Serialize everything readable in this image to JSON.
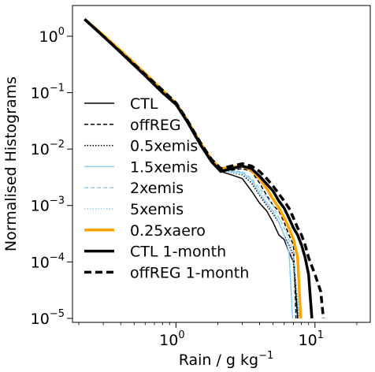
{
  "chart_data": {
    "type": "line",
    "xlabel_main": "Rain / g kg",
    "xlabel_sup": "−1",
    "ylabel": "Normalised Histograms",
    "xscale": "log",
    "yscale": "log",
    "xlim": [
      0.18,
      25
    ],
    "ylim": [
      8.5e-06,
      3.5
    ],
    "x_ticks": [
      {
        "value": 1,
        "base": "10",
        "exp": "0"
      },
      {
        "value": 10,
        "base": "10",
        "exp": "1"
      }
    ],
    "y_ticks": [
      {
        "value": 1,
        "base": "10",
        "exp": "0"
      },
      {
        "value": 0.1,
        "base": "10",
        "exp": "−1"
      },
      {
        "value": 0.01,
        "base": "10",
        "exp": "−2"
      },
      {
        "value": 0.001,
        "base": "10",
        "exp": "−3"
      },
      {
        "value": 0.0001,
        "base": "10",
        "exp": "−4"
      },
      {
        "value": 1e-05,
        "base": "10",
        "exp": "−5"
      }
    ],
    "legend_position": "center-left",
    "series": [
      {
        "name": "CTL",
        "color": "#000000",
        "width": 1.5,
        "dash": "",
        "x": [
          0.22,
          0.3,
          0.42,
          0.6,
          0.8,
          1.0,
          1.2,
          1.5,
          1.8,
          2.1,
          2.5,
          3.0,
          3.5,
          4.0,
          4.5,
          5.0,
          5.5,
          6.0,
          6.5,
          7.0,
          7.5
        ],
        "y": [
          2.0,
          1.0,
          0.45,
          0.2,
          0.1,
          0.06,
          0.03,
          0.012,
          0.006,
          0.004,
          0.0035,
          0.003,
          0.0018,
          0.0011,
          0.0008,
          0.0005,
          0.0003,
          0.00025,
          0.00015,
          0.0001,
          1e-05
        ]
      },
      {
        "name": "offREG",
        "color": "#000000",
        "width": 1.5,
        "dash": "5,3",
        "x": [
          0.22,
          0.3,
          0.42,
          0.6,
          0.8,
          1.0,
          1.2,
          1.5,
          1.8,
          2.1,
          2.5,
          3.0,
          3.5,
          4.0,
          4.5,
          5.0,
          5.5,
          6.0,
          6.5,
          7.0,
          7.3
        ],
        "y": [
          2.0,
          1.0,
          0.47,
          0.21,
          0.11,
          0.065,
          0.032,
          0.013,
          0.0065,
          0.0045,
          0.0042,
          0.0045,
          0.004,
          0.0025,
          0.0015,
          0.001,
          0.0008,
          0.0005,
          0.0003,
          0.0002,
          1e-05
        ]
      },
      {
        "name": "0.5xemis",
        "color": "#000000",
        "width": 1.5,
        "dash": "1.5,2",
        "x": [
          0.22,
          0.3,
          0.42,
          0.6,
          0.8,
          1.0,
          1.2,
          1.5,
          1.8,
          2.1,
          2.5,
          3.0,
          3.5,
          4.0,
          4.5,
          5.0,
          5.5,
          6.0,
          6.5,
          7.0,
          7.6
        ],
        "y": [
          2.0,
          1.0,
          0.46,
          0.2,
          0.105,
          0.062,
          0.031,
          0.012,
          0.006,
          0.0042,
          0.0038,
          0.0035,
          0.0025,
          0.0015,
          0.001,
          0.0007,
          0.0005,
          0.0003,
          0.0002,
          0.00013,
          1e-05
        ]
      },
      {
        "name": "1.5xemis",
        "color": "#8ecfee",
        "width": 1.5,
        "dash": "",
        "x": [
          0.22,
          0.3,
          0.42,
          0.6,
          0.8,
          1.0,
          1.2,
          1.5,
          1.8,
          2.1,
          2.5,
          3.0,
          3.5,
          4.0,
          4.5,
          5.0,
          5.5,
          6.0,
          6.5,
          6.9
        ],
        "y": [
          2.0,
          1.0,
          0.46,
          0.2,
          0.1,
          0.06,
          0.03,
          0.012,
          0.006,
          0.0045,
          0.004,
          0.0038,
          0.0028,
          0.0016,
          0.0011,
          0.0008,
          0.0005,
          0.0003,
          0.00015,
          1e-05
        ]
      },
      {
        "name": "2xemis",
        "color": "#8ecfee",
        "width": 1.5,
        "dash": "5,3",
        "x": [
          0.22,
          0.3,
          0.42,
          0.6,
          0.8,
          1.0,
          1.2,
          1.5,
          1.8,
          2.1,
          2.5,
          3.0,
          3.5,
          4.0,
          4.5,
          5.0,
          5.5,
          6.0,
          6.5,
          7.0,
          7.7
        ],
        "y": [
          2.0,
          1.0,
          0.46,
          0.2,
          0.105,
          0.062,
          0.031,
          0.012,
          0.006,
          0.0042,
          0.004,
          0.004,
          0.003,
          0.002,
          0.0014,
          0.001,
          0.0006,
          0.0004,
          0.00025,
          0.00015,
          1e-05
        ]
      },
      {
        "name": "5xemis",
        "color": "#8ecfee",
        "width": 1.5,
        "dash": "1.5,2",
        "x": [
          0.22,
          0.3,
          0.42,
          0.6,
          0.8,
          1.0,
          1.2,
          1.5,
          1.8,
          2.1,
          2.5,
          3.0,
          3.5,
          4.0,
          4.5,
          5.0,
          5.5,
          6.0,
          6.5,
          7.0,
          7.2
        ],
        "y": [
          2.0,
          1.0,
          0.46,
          0.2,
          0.1,
          0.06,
          0.03,
          0.012,
          0.006,
          0.0042,
          0.0038,
          0.0036,
          0.0028,
          0.0018,
          0.0012,
          0.0008,
          0.0005,
          0.0003,
          0.0002,
          0.0001,
          1e-05
        ]
      },
      {
        "name": "0.25xaero",
        "color": "#ffa500",
        "width": 3.5,
        "dash": "",
        "x": [
          0.22,
          0.3,
          0.42,
          0.6,
          0.8,
          1.0,
          1.2,
          1.5,
          1.8,
          2.1,
          2.5,
          3.0,
          3.5,
          4.0,
          4.5,
          5.0,
          5.5,
          6.0,
          6.5,
          7.0,
          7.5,
          7.9
        ],
        "y": [
          2.0,
          1.05,
          0.5,
          0.22,
          0.11,
          0.065,
          0.033,
          0.013,
          0.0065,
          0.0045,
          0.0048,
          0.005,
          0.0042,
          0.003,
          0.002,
          0.0013,
          0.0009,
          0.0006,
          0.0004,
          0.00025,
          0.00012,
          1e-05
        ]
      },
      {
        "name": "CTL 1-month",
        "color": "#000000",
        "width": 3.5,
        "dash": "",
        "x": [
          0.22,
          0.3,
          0.42,
          0.6,
          0.8,
          1.0,
          1.2,
          1.5,
          1.8,
          2.1,
          2.5,
          3.0,
          3.5,
          4.0,
          4.5,
          5.0,
          5.5,
          6.0,
          6.5,
          7.0,
          7.5,
          8.0,
          8.5,
          9.0,
          9.5
        ],
        "y": [
          2.0,
          1.0,
          0.46,
          0.2,
          0.1,
          0.062,
          0.031,
          0.012,
          0.006,
          0.004,
          0.0045,
          0.005,
          0.0045,
          0.0033,
          0.0024,
          0.0018,
          0.0012,
          0.0009,
          0.0006,
          0.0004,
          0.0003,
          0.0002,
          0.00012,
          6e-05,
          1e-05
        ]
      },
      {
        "name": "offREG 1-month",
        "color": "#000000",
        "width": 3.5,
        "dash": "9,5",
        "x": [
          0.22,
          0.3,
          0.42,
          0.6,
          0.8,
          1.0,
          1.2,
          1.5,
          1.8,
          2.1,
          2.5,
          3.0,
          3.5,
          4.0,
          4.5,
          5.0,
          5.5,
          6.0,
          6.5,
          7.0,
          7.5,
          8.0,
          8.5,
          9.0,
          10.0,
          11.0,
          11.5
        ],
        "y": [
          2.0,
          1.0,
          0.47,
          0.21,
          0.11,
          0.066,
          0.033,
          0.013,
          0.0066,
          0.0045,
          0.005,
          0.0055,
          0.005,
          0.004,
          0.003,
          0.0022,
          0.0016,
          0.0012,
          0.0009,
          0.0006,
          0.0004,
          0.0003,
          0.0002,
          0.00012,
          6e-05,
          3e-05,
          1e-05
        ]
      }
    ]
  }
}
